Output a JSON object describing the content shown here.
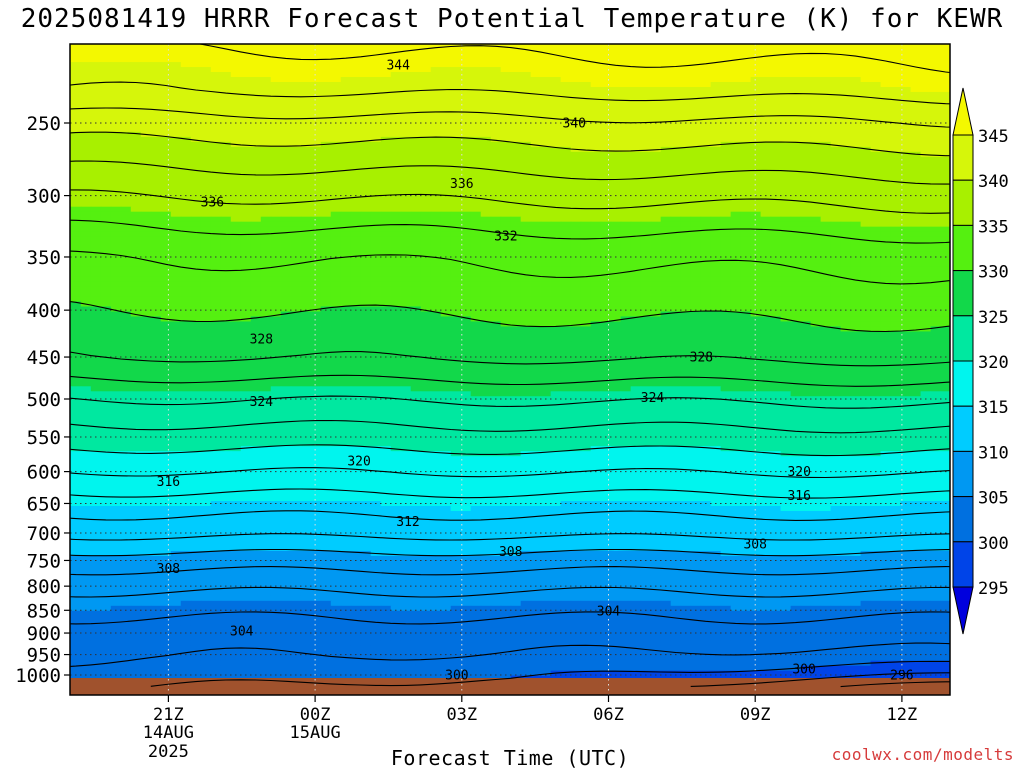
{
  "chart_data": {
    "type": "heatmap",
    "title": "2025081419 HRRR Forecast Potential Temperature (K) for KEWR",
    "xlabel": "Forecast Time (UTC)",
    "credit": "coolwx.com/modelts",
    "x_ticks": [
      {
        "label": "21Z",
        "sub": [
          "14AUG",
          "2025"
        ],
        "hour": 2
      },
      {
        "label": "00Z",
        "sub": [
          "15AUG"
        ],
        "hour": 5
      },
      {
        "label": "03Z",
        "sub": [],
        "hour": 8
      },
      {
        "label": "06Z",
        "sub": [],
        "hour": 11
      },
      {
        "label": "09Z",
        "sub": [],
        "hour": 14
      },
      {
        "label": "12Z",
        "sub": [],
        "hour": 17
      }
    ],
    "x_range_hours": [
      0,
      18
    ],
    "y_ticks": [
      250,
      300,
      350,
      400,
      450,
      500,
      550,
      600,
      650,
      700,
      750,
      800,
      850,
      900,
      950,
      1000
    ],
    "y_axis": "pressure (hPa), log scale, inverted",
    "y_range": [
      200,
      1030
    ],
    "colorbar": {
      "levels": [
        295,
        300,
        305,
        310,
        315,
        320,
        325,
        330,
        335,
        340,
        345
      ],
      "colors": [
        "#0000dd",
        "#0044e8",
        "#0070e0",
        "#0098f2",
        "#00ccff",
        "#00f5ee",
        "#00e8a0",
        "#12d84a",
        "#55f010",
        "#a8f000",
        "#d6f60a",
        "#f4f800"
      ]
    },
    "contour_labels": [
      {
        "value": 344,
        "hour": 6.7,
        "p": 216
      },
      {
        "value": 340,
        "hour": 10.3,
        "p": 250
      },
      {
        "value": 336,
        "hour": 8.0,
        "p": 291
      },
      {
        "value": 336,
        "hour": 2.9,
        "p": 305
      },
      {
        "value": 332,
        "hour": 8.9,
        "p": 332
      },
      {
        "value": 328,
        "hour": 3.9,
        "p": 430
      },
      {
        "value": 328,
        "hour": 12.9,
        "p": 450
      },
      {
        "value": 324,
        "hour": 3.9,
        "p": 503
      },
      {
        "value": 324,
        "hour": 11.9,
        "p": 498
      },
      {
        "value": 320,
        "hour": 5.9,
        "p": 584
      },
      {
        "value": 320,
        "hour": 14.9,
        "p": 600
      },
      {
        "value": 316,
        "hour": 2.0,
        "p": 615
      },
      {
        "value": 316,
        "hour": 14.9,
        "p": 637
      },
      {
        "value": 312,
        "hour": 6.9,
        "p": 680
      },
      {
        "value": 308,
        "hour": 9.0,
        "p": 733
      },
      {
        "value": 308,
        "hour": 2.0,
        "p": 765
      },
      {
        "value": 308,
        "hour": 14.0,
        "p": 720
      },
      {
        "value": 304,
        "hour": 11.0,
        "p": 851
      },
      {
        "value": 304,
        "hour": 3.5,
        "p": 895
      },
      {
        "value": 300,
        "hour": 7.9,
        "p": 1000
      },
      {
        "value": 300,
        "hour": 15.0,
        "p": 985
      },
      {
        "value": 296,
        "hour": 17.0,
        "p": 1000
      }
    ]
  }
}
